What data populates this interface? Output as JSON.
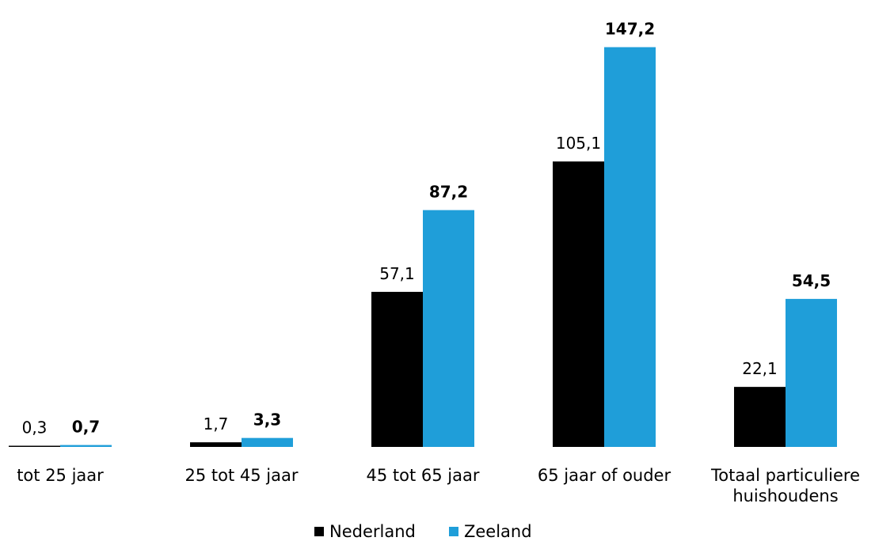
{
  "chart_data": {
    "type": "bar",
    "categories": [
      [
        "tot 25 jaar"
      ],
      [
        "25 tot 45 jaar"
      ],
      [
        "45 tot 65 jaar"
      ],
      [
        "65 jaar of ouder"
      ],
      [
        "Totaal particuliere",
        "huishoudens"
      ]
    ],
    "series": [
      {
        "name": "Nederland",
        "color": "#000000",
        "values": [
          0.3,
          1.7,
          57.1,
          105.1,
          22.1
        ],
        "labels": [
          "0,3",
          "1,7",
          "57,1",
          "105,1",
          "22,1"
        ]
      },
      {
        "name": "Zeeland",
        "color": "#1f9ed9",
        "values": [
          0.7,
          3.3,
          87.2,
          147.2,
          54.5
        ],
        "labels": [
          "0,7",
          "3,3",
          "87,2",
          "147,2",
          "54,5"
        ]
      }
    ],
    "ylim": [
      0,
      150
    ],
    "grid": false,
    "legend_position": "bottom"
  }
}
